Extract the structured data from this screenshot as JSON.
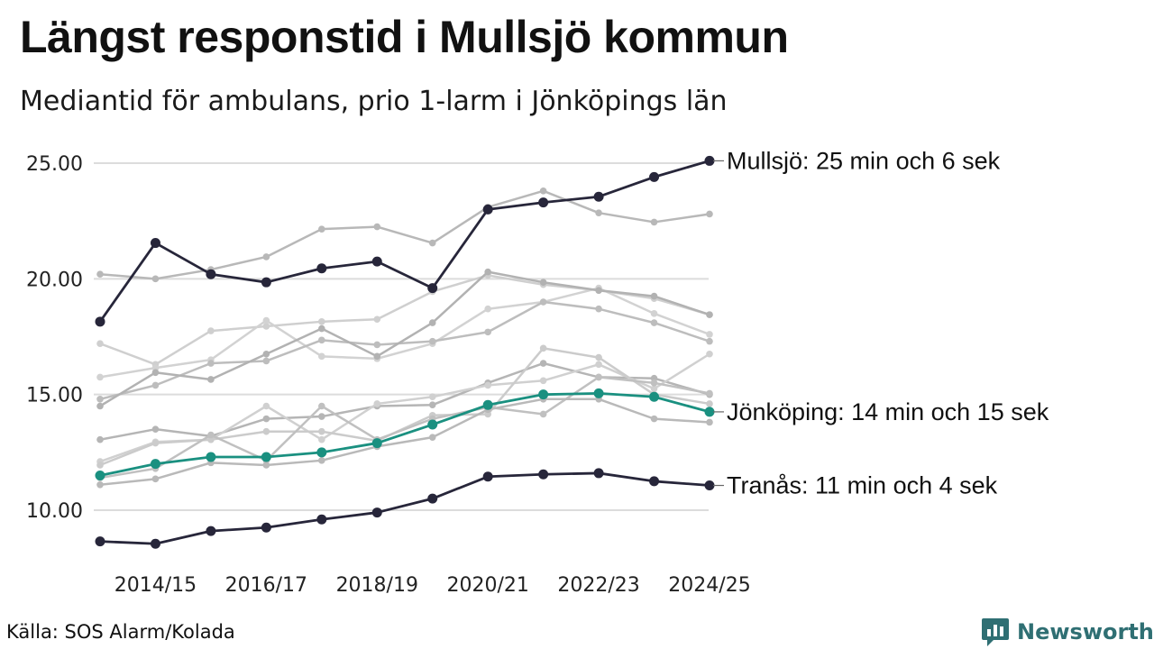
{
  "title": "Längst responstid i Mullsjö kommun",
  "subtitle": "Mediantid för ambulans, prio 1-larm i Jönköpings län",
  "source": "Källa: SOS Alarm/Kolada",
  "brand": {
    "name": "Newsworthy",
    "icon": "bar-chart-speech-bubble-icon",
    "color": "#2f6f73"
  },
  "colors": {
    "highlight": "#27263a",
    "county": "#1a9080",
    "grid": "#dcdcdc"
  },
  "chart_data": {
    "type": "line",
    "title": "Längst responstid i Mullsjö kommun",
    "xlabel": "",
    "ylabel": "",
    "ylim": [
      8.0,
      25.5
    ],
    "yticks": [
      "10.00",
      "15.00",
      "20.00",
      "25.00"
    ],
    "ytick_values": [
      10,
      15,
      20,
      25
    ],
    "x": [
      "2013/14",
      "2014/15",
      "2015/16",
      "2016/17",
      "2017/18",
      "2018/19",
      "2019/20",
      "2020/21",
      "2021/22",
      "2022/23",
      "2023/24",
      "2024/25"
    ],
    "xticks": [
      "2014/15",
      "2016/17",
      "2018/19",
      "2020/21",
      "2022/23",
      "2024/25"
    ],
    "highlight_series": [
      {
        "name": "Mullsjö",
        "label": "Mullsjö: 25 min och 6 sek",
        "color": "#27263a",
        "values": [
          18.15,
          21.55,
          20.2,
          19.85,
          20.45,
          20.75,
          19.6,
          23.0,
          23.3,
          23.55,
          24.4,
          25.1
        ]
      },
      {
        "name": "Jönköping",
        "label": "Jönköping: 14 min och 15 sek",
        "color": "#1a9080",
        "values": [
          11.5,
          12.0,
          12.3,
          12.3,
          12.5,
          12.9,
          13.7,
          14.55,
          15.0,
          15.05,
          14.9,
          14.25
        ]
      },
      {
        "name": "Tranås",
        "label": "Tranås: 11 min och 4 sek",
        "color": "#27263a",
        "values": [
          8.65,
          8.55,
          9.1,
          9.25,
          9.6,
          9.9,
          10.5,
          11.45,
          11.55,
          11.6,
          11.25,
          11.07
        ]
      }
    ],
    "background_series": [
      {
        "values": [
          20.2,
          20.0,
          20.4,
          20.95,
          22.15,
          22.25,
          21.55,
          23.1,
          23.8,
          22.85,
          22.45,
          22.8
        ]
      },
      {
        "values": [
          17.2,
          16.3,
          17.75,
          17.95,
          18.15,
          18.25,
          19.45,
          20.15,
          19.75,
          19.5,
          19.15,
          18.45
        ]
      },
      {
        "values": [
          15.75,
          16.15,
          16.5,
          18.2,
          16.65,
          16.55,
          17.2,
          18.7,
          19.0,
          19.6,
          18.5,
          17.6
        ]
      },
      {
        "values": [
          14.8,
          15.4,
          16.35,
          16.45,
          17.35,
          17.15,
          17.3,
          17.7,
          19.0,
          18.7,
          18.1,
          17.3
        ]
      },
      {
        "values": [
          14.5,
          15.95,
          15.65,
          16.75,
          17.85,
          16.65,
          18.1,
          20.3,
          19.85,
          19.5,
          19.25,
          18.45
        ]
      },
      {
        "values": [
          13.05,
          13.5,
          13.2,
          13.95,
          14.05,
          14.5,
          14.55,
          15.5,
          16.35,
          15.75,
          15.7,
          15.0
        ]
      },
      {
        "values": [
          12.1,
          12.95,
          13.05,
          14.5,
          13.05,
          14.6,
          14.9,
          15.4,
          15.6,
          16.3,
          15.25,
          16.75
        ]
      },
      {
        "values": [
          11.95,
          12.9,
          13.05,
          13.4,
          13.4,
          13.0,
          14.1,
          14.15,
          17.0,
          16.6,
          15.0,
          14.6
        ]
      },
      {
        "values": [
          11.4,
          11.8,
          13.25,
          12.15,
          14.5,
          13.05,
          13.95,
          14.45,
          14.15,
          15.75,
          15.5,
          15.05
        ]
      },
      {
        "values": [
          11.1,
          11.35,
          12.05,
          11.95,
          12.15,
          12.75,
          13.15,
          14.35,
          14.8,
          14.8,
          13.95,
          13.8
        ]
      }
    ]
  }
}
